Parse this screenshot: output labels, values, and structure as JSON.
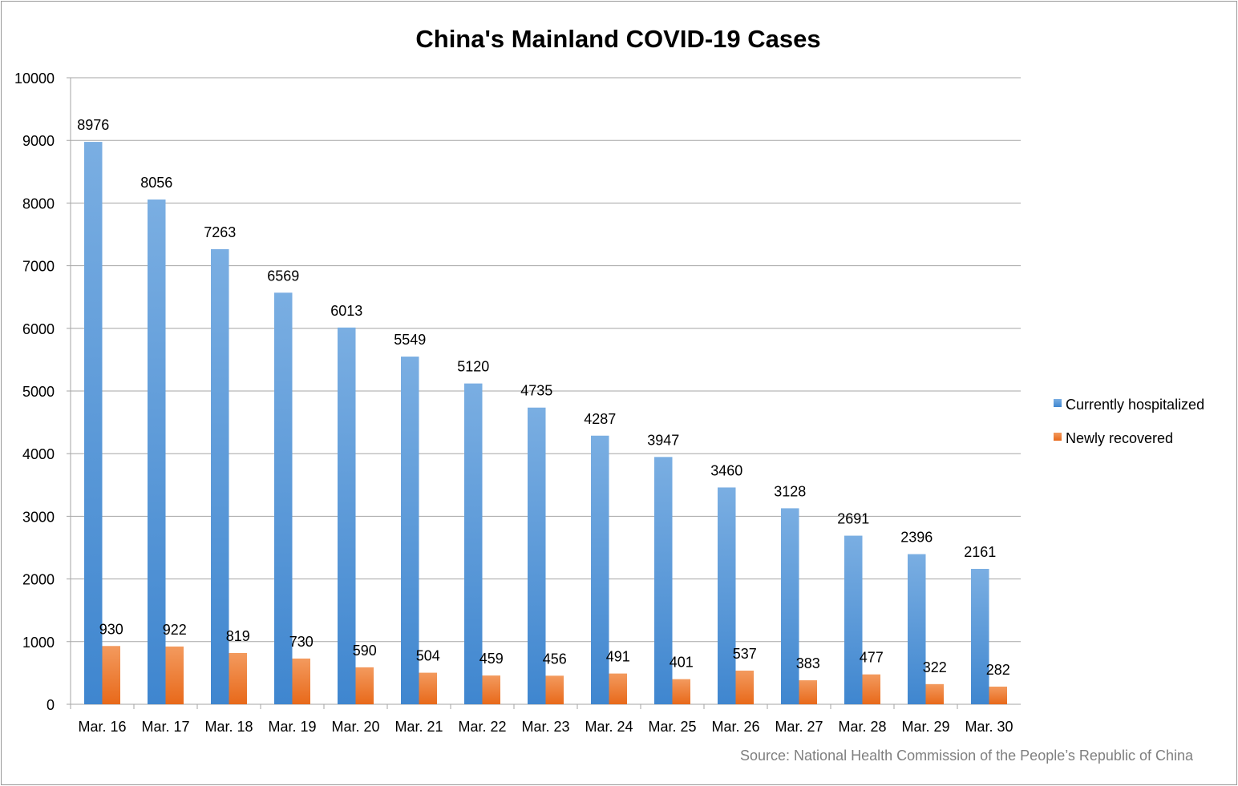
{
  "chart_data": {
    "type": "bar",
    "title": "China's Mainland COVID-19 Cases",
    "source_note": "Source: National Health Commission of the People’s Republic of China",
    "categories": [
      "Mar. 16",
      "Mar. 17",
      "Mar. 18",
      "Mar. 19",
      "Mar. 20",
      "Mar. 21",
      "Mar. 22",
      "Mar. 23",
      "Mar. 24",
      "Mar. 25",
      "Mar. 26",
      "Mar. 27",
      "Mar. 28",
      "Mar. 29",
      "Mar. 30"
    ],
    "series": [
      {
        "name": "Currently hospitalized",
        "color": "#4a8fd6",
        "values": [
          8976,
          8056,
          7263,
          6569,
          6013,
          5549,
          5120,
          4735,
          4287,
          3947,
          3460,
          3128,
          2691,
          2396,
          2161
        ]
      },
      {
        "name": "Newly recovered",
        "color": "#ee7a2c",
        "values": [
          930,
          922,
          819,
          730,
          590,
          504,
          459,
          456,
          491,
          401,
          537,
          383,
          477,
          322,
          282
        ]
      }
    ],
    "ylim": [
      0,
      10000
    ],
    "yticks": [
      "0",
      "1000",
      "2000",
      "3000",
      "4000",
      "5000",
      "6000",
      "7000",
      "8000",
      "9000",
      "10000"
    ],
    "grid": true,
    "legend": "right",
    "data_labels": true
  }
}
